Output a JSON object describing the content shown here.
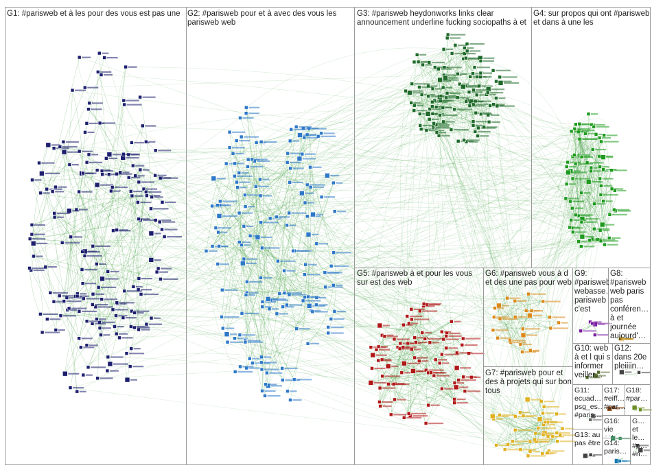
{
  "colors": {
    "edge": "#3a9a3a",
    "g1": "#1d1f6e",
    "g2": "#2e78c8",
    "g3": "#1f6a2a",
    "g4": "#1e9a1e",
    "g5": "#b01818",
    "g6": "#d98a1a",
    "g7": "#e0b020",
    "g8": "#b8860b",
    "g9": "#7a1fa2",
    "g10": "#556b2f",
    "g11": "#6a6a6a",
    "g13": "#404040",
    "g14": "#1a7ab0",
    "g16": "#2e8b57",
    "g17": "#8b4513",
    "g18": "#6a8e23",
    "box": "#9a9a9a"
  },
  "groups": [
    {
      "id": "g1",
      "label": "G1: #parisweb et à les pour des vous est pas une"
    },
    {
      "id": "g2",
      "label": "G2: #parisweb pour et à avec des vous les parisweb web"
    },
    {
      "id": "g3",
      "label": "G3: #parisweb heydonworks links clear announcement underline fucking sociopaths à et"
    },
    {
      "id": "g4",
      "label": "G4: sur propos qui ont #parisweb et dans à une les"
    },
    {
      "id": "g5",
      "label": "G5: #parisweb à et pour les vous sur est des web"
    },
    {
      "id": "g6",
      "label": "G6: #parisweb vous à d et des une pas pour web"
    },
    {
      "id": "g7",
      "label": "G7: #parisweb pour et des à projets qui sur bon tous"
    },
    {
      "id": "g8",
      "label": "G8: #parisweb web paris pas conféren… à et journée aujourd'…"
    },
    {
      "id": "g9",
      "label": "G9: #parisweb webasse… parisweb c'est"
    },
    {
      "id": "g10",
      "label": "G10: web à et l qui s informer veiller…"
    },
    {
      "id": "g11",
      "label": "G11: ecuad… psg_es… #paris…"
    },
    {
      "id": "g12",
      "label": "G12: dans 20e pleiiiin…"
    },
    {
      "id": "g13",
      "label": "G13: au pas être"
    },
    {
      "id": "g14",
      "label": "G14: paris…"
    },
    {
      "id": "g16",
      "label": "G16: vie est…"
    },
    {
      "id": "g17",
      "label": "G17: #eiff… #par…"
    },
    {
      "id": "g18",
      "label": "G18: #par…"
    },
    {
      "id": "g19",
      "label": "G… et le… #p… #n…"
    }
  ]
}
